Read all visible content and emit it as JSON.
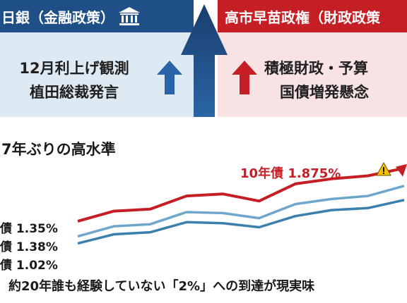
{
  "boj_panel": {
    "header": "日銀（金融政策）",
    "icon": "bank-icon",
    "lines": [
      "12月利上げ観測",
      "植田総裁発言"
    ]
  },
  "fiscal_panel": {
    "header": "高市早苗政権（財政政策",
    "lines": [
      "積極財政・予算",
      "国債増発懸念"
    ]
  },
  "colors": {
    "boj_blue": "#1f4f87",
    "fiscal_red": "#c51f25",
    "series_10y": "#c51f25",
    "series_mid": "#6fa7cc",
    "series_low": "#3b7fae"
  },
  "chart_data": {
    "type": "line",
    "title": "7年ぶりの高水準",
    "x": [
      0,
      1,
      2,
      3,
      4,
      5,
      6,
      7,
      8,
      9
    ],
    "series": [
      {
        "name": "10年債",
        "values": [
          1.35,
          1.45,
          1.47,
          1.6,
          1.62,
          1.55,
          1.72,
          1.77,
          1.8,
          1.875
        ]
      },
      {
        "name": "",
        "values": [
          1.2,
          1.3,
          1.32,
          1.44,
          1.43,
          1.38,
          1.52,
          1.57,
          1.6,
          1.7
        ]
      },
      {
        "name": "",
        "values": [
          1.13,
          1.22,
          1.24,
          1.34,
          1.33,
          1.29,
          1.4,
          1.46,
          1.48,
          1.56
        ]
      }
    ],
    "series_labels": [
      {
        "text": "債 1.35%"
      },
      {
        "text": "債 1.38%"
      },
      {
        "text": "債 1.02%"
      }
    ],
    "callout": "10年債 1.875%",
    "ylim": [
      1.0,
      1.95
    ],
    "grid": false
  },
  "caption": "約20年誰も経験していない「2%」への到達が現実味"
}
